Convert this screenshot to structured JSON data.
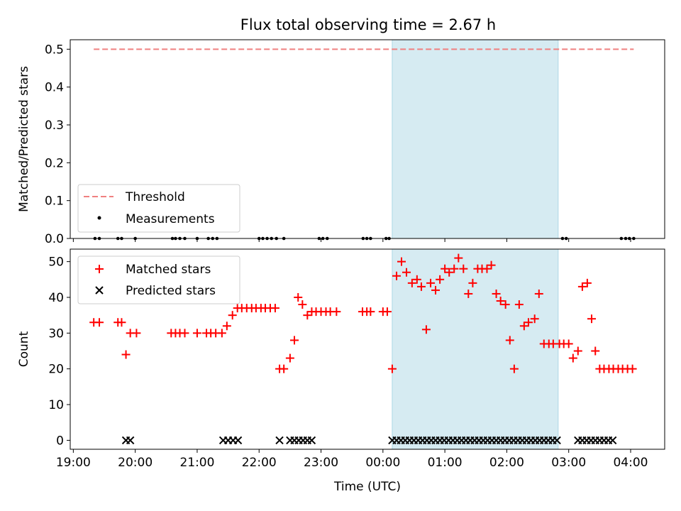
{
  "chart_data": [
    {
      "type": "scatter",
      "title": "Flux total observing time = 2.67 h",
      "xlabel": "",
      "ylabel": "Matched/Predicted stars",
      "xlim": [
        18.95,
        28.55
      ],
      "ylim": [
        0,
        0.525
      ],
      "yticks": [
        0.0,
        0.1,
        0.2,
        0.3,
        0.4,
        0.5
      ],
      "ytick_labels": [
        "0.0",
        "0.1",
        "0.2",
        "0.3",
        "0.4",
        "0.5"
      ],
      "highlight_span": [
        24.15,
        26.83
      ],
      "legend_position": "lower-left",
      "threshold": {
        "name": "Threshold",
        "value": 0.5,
        "x_range": [
          19.33,
          28.05
        ],
        "color": "#f08080"
      },
      "measurements": {
        "name": "Measurements",
        "color": "#000000",
        "x": [
          19.35,
          19.42,
          19.72,
          19.78,
          20.0,
          20.6,
          20.65,
          20.72,
          20.8,
          21.0,
          21.18,
          21.25,
          21.32,
          22.0,
          22.06,
          22.13,
          22.2,
          22.28,
          22.4,
          22.97,
          23.03,
          23.1,
          23.68,
          23.74,
          23.8,
          24.05,
          24.1,
          26.9,
          26.96,
          27.85,
          27.92,
          27.98,
          28.05
        ],
        "y": [
          0,
          0,
          0,
          0,
          0,
          0,
          0,
          0,
          0,
          0,
          0,
          0,
          0,
          0,
          0,
          0,
          0,
          0,
          0,
          0,
          0,
          0,
          0,
          0,
          0,
          0,
          0,
          0,
          0,
          0,
          0,
          0,
          0
        ]
      }
    },
    {
      "type": "scatter",
      "xlabel": "Time (UTC)",
      "ylabel": "Count",
      "xlim": [
        18.95,
        28.55
      ],
      "ylim": [
        -2.5,
        53.5
      ],
      "yticks": [
        0,
        10,
        20,
        30,
        40,
        50
      ],
      "ytick_labels": [
        "0",
        "10",
        "20",
        "30",
        "40",
        "50"
      ],
      "xticks": [
        19,
        20,
        21,
        22,
        23,
        24,
        25,
        26,
        27,
        28
      ],
      "xtick_labels": [
        "19:00",
        "20:00",
        "21:00",
        "22:00",
        "23:00",
        "00:00",
        "01:00",
        "02:00",
        "03:00",
        "04:00"
      ],
      "highlight_span": [
        24.15,
        26.83
      ],
      "legend_position": "top-left",
      "series": [
        {
          "name": "Matched stars",
          "marker": "plus",
          "color": "#ff0000",
          "x": [
            19.33,
            19.42,
            19.72,
            19.78,
            19.85,
            19.92,
            20.02,
            20.58,
            20.65,
            20.72,
            20.8,
            21.0,
            21.15,
            21.22,
            21.3,
            21.4,
            21.48,
            21.57,
            21.65,
            21.72,
            21.8,
            21.88,
            21.95,
            22.03,
            22.1,
            22.18,
            22.26,
            22.33,
            22.4,
            22.5,
            22.57,
            22.63,
            22.7,
            22.78,
            22.85,
            22.92,
            23.0,
            23.08,
            23.15,
            23.25,
            23.67,
            23.74,
            23.8,
            24.0,
            24.07,
            24.15,
            24.22,
            24.3,
            24.38,
            24.47,
            24.55,
            24.62,
            24.7,
            24.77,
            24.85,
            24.92,
            25.0,
            25.07,
            25.15,
            25.22,
            25.3,
            25.38,
            25.45,
            25.53,
            25.6,
            25.68,
            25.75,
            25.83,
            25.9,
            25.98,
            26.05,
            26.12,
            26.2,
            26.28,
            26.35,
            26.45,
            26.52,
            26.6,
            26.68,
            26.75,
            26.85,
            26.92,
            27.0,
            27.07,
            27.15,
            27.22,
            27.3,
            27.37,
            27.43,
            27.5,
            27.57,
            27.65,
            27.72,
            27.8,
            27.87,
            27.95,
            28.03
          ],
          "y": [
            33,
            33,
            33,
            33,
            24,
            30,
            30,
            30,
            30,
            30,
            30,
            30,
            30,
            30,
            30,
            30,
            32,
            35,
            37,
            37,
            37,
            37,
            37,
            37,
            37,
            37,
            37,
            20,
            20,
            23,
            28,
            40,
            38,
            35,
            36,
            36,
            36,
            36,
            36,
            36,
            36,
            36,
            36,
            36,
            36,
            20,
            46,
            50,
            47,
            44,
            45,
            43,
            31,
            44,
            42,
            45,
            48,
            47,
            48,
            51,
            48,
            41,
            44,
            48,
            48,
            48,
            49,
            41,
            39,
            38,
            28,
            20,
            38,
            32,
            33,
            34,
            41,
            27,
            27,
            27,
            27,
            27,
            27,
            23,
            25,
            43,
            44,
            34,
            25,
            20,
            20,
            20,
            20,
            20,
            20,
            20,
            20
          ]
        },
        {
          "name": "Predicted stars",
          "marker": "x",
          "color": "#000000",
          "x": [
            19.85,
            19.92,
            21.42,
            21.5,
            21.58,
            21.66,
            22.33,
            22.5,
            22.57,
            22.64,
            22.71,
            22.78,
            22.85,
            24.15,
            24.22,
            24.29,
            24.36,
            24.43,
            24.5,
            24.57,
            24.64,
            24.71,
            24.78,
            24.85,
            24.92,
            24.99,
            25.06,
            25.13,
            25.2,
            25.27,
            25.34,
            25.41,
            25.48,
            25.55,
            25.62,
            25.69,
            25.76,
            25.83,
            25.9,
            25.97,
            26.04,
            26.11,
            26.18,
            26.25,
            26.32,
            26.39,
            26.46,
            26.53,
            26.6,
            26.67,
            26.74,
            26.81,
            27.15,
            27.22,
            27.29,
            27.36,
            27.43,
            27.5,
            27.57,
            27.64,
            27.71
          ],
          "y": [
            0,
            0,
            0,
            0,
            0,
            0,
            0,
            0,
            0,
            0,
            0,
            0,
            0,
            0,
            0,
            0,
            0,
            0,
            0,
            0,
            0,
            0,
            0,
            0,
            0,
            0,
            0,
            0,
            0,
            0,
            0,
            0,
            0,
            0,
            0,
            0,
            0,
            0,
            0,
            0,
            0,
            0,
            0,
            0,
            0,
            0,
            0,
            0,
            0,
            0,
            0,
            0,
            0,
            0,
            0,
            0,
            0,
            0,
            0,
            0,
            0
          ]
        }
      ]
    }
  ]
}
